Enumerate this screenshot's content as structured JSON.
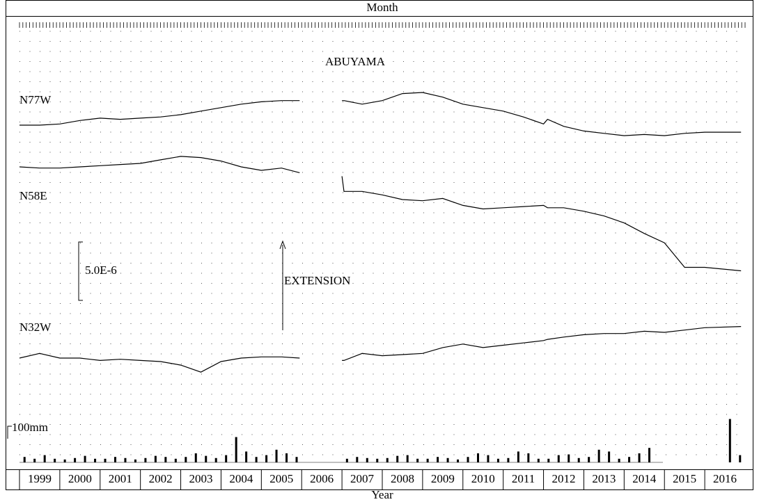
{
  "chart_data": [
    {
      "type": "line",
      "title": "ABUYAMA",
      "top_label": "Month",
      "xlabel": "Year",
      "xlim": [
        1999,
        2017
      ],
      "xticks": [
        1999,
        2000,
        2001,
        2002,
        2003,
        2004,
        2005,
        2006,
        2007,
        2008,
        2009,
        2010,
        2011,
        2012,
        2013,
        2014,
        2015,
        2016
      ],
      "x": [
        1999,
        1999.5,
        2000,
        2000.5,
        2001,
        2001.5,
        2002,
        2002.5,
        2003,
        2003.5,
        2004,
        2004.5,
        2005,
        2005.5,
        2005.95,
        2006.5,
        2007,
        2007.05,
        2007.5,
        2008,
        2008.5,
        2009,
        2009.5,
        2010,
        2010.5,
        2011,
        2011.5,
        2012,
        2012.1,
        2012.5,
        2013,
        2013.5,
        2014,
        2014.5,
        2015,
        2015.5,
        2016,
        2016.9
      ],
      "series": [
        {
          "name": "N77W",
          "color": "#000000",
          "values": [
            0,
            0,
            1e-07,
            4e-07,
            6e-07,
            5e-07,
            6e-07,
            7e-07,
            9e-07,
            1.2e-06,
            1.5e-06,
            1.8e-06,
            2e-06,
            2.1e-06,
            2.1e-06,
            null,
            2.1e-06,
            2.1e-06,
            1.8e-06,
            2.1e-06,
            2.7e-06,
            2.8e-06,
            2.4e-06,
            1.8e-06,
            1.5e-06,
            1.2e-06,
            7e-07,
            1e-07,
            5e-07,
            -1e-07,
            -5e-07,
            -7e-07,
            -9e-07,
            -8e-07,
            -9e-07,
            -7e-07,
            -6e-07,
            -6e-07
          ]
        },
        {
          "name": "N58E",
          "color": "#000000",
          "values": [
            0,
            -1e-07,
            -1e-07,
            0,
            1e-07,
            2e-07,
            3e-07,
            6e-07,
            9e-07,
            8e-07,
            5e-07,
            0,
            -3e-07,
            -1e-07,
            -5e-07,
            null,
            -8e-07,
            -2.1e-06,
            -2.1e-06,
            -2.4e-06,
            -2.8e-06,
            -2.9e-06,
            -2.7e-06,
            -3.3e-06,
            -3.6e-06,
            -3.5e-06,
            -3.4e-06,
            -3.3e-06,
            -3.5e-06,
            -3.5e-06,
            -3.8e-06,
            -4.2e-06,
            -4.8e-06,
            -5.7e-06,
            -6.5e-06,
            -8.6e-06,
            -8.6e-06,
            -8.9e-06
          ]
        },
        {
          "name": "N32W",
          "color": "#000000",
          "values": [
            0,
            4e-07,
            0,
            0,
            -2e-07,
            -1e-07,
            -2e-07,
            -3e-07,
            -6e-07,
            -1.2e-06,
            -3e-07,
            0,
            1e-07,
            1e-07,
            0,
            null,
            -2e-07,
            -2e-07,
            4e-07,
            2e-07,
            3e-07,
            4e-07,
            9e-07,
            1.2e-06,
            9e-07,
            1.1e-06,
            1.3e-06,
            1.5e-06,
            1.6e-06,
            1.8e-06,
            2e-06,
            2.1e-06,
            2.1e-06,
            2.3e-06,
            2.2e-06,
            2.4e-06,
            2.6e-06,
            2.7e-06
          ]
        }
      ],
      "scale_bar": {
        "value": 5e-06,
        "label": "5.0E-6"
      },
      "annotation": "EXTENSION"
    },
    {
      "type": "bar",
      "xlim": [
        1999,
        2017
      ],
      "x": [
        1999.125,
        1999.375,
        1999.625,
        1999.875,
        2000.125,
        2000.375,
        2000.625,
        2000.875,
        2001.125,
        2001.375,
        2001.625,
        2001.875,
        2002.125,
        2002.375,
        2002.625,
        2002.875,
        2003.125,
        2003.375,
        2003.625,
        2003.875,
        2004.125,
        2004.375,
        2004.625,
        2004.875,
        2005.125,
        2005.375,
        2005.625,
        2005.875,
        2006.125,
        2006.375,
        2006.625,
        2006.875,
        2007.125,
        2007.375,
        2007.625,
        2007.875,
        2008.125,
        2008.375,
        2008.625,
        2008.875,
        2009.125,
        2009.375,
        2009.625,
        2009.875,
        2010.125,
        2010.375,
        2010.625,
        2010.875,
        2011.125,
        2011.375,
        2011.625,
        2011.875,
        2012.125,
        2012.375,
        2012.625,
        2012.875,
        2013.125,
        2013.375,
        2013.625,
        2013.875,
        2014.125,
        2014.375,
        2014.625,
        2014.875,
        2015.125,
        2015.375,
        2015.625,
        2015.875,
        2016.125,
        2016.375,
        2016.625,
        2016.875
      ],
      "values": [
        15,
        10,
        20,
        10,
        8,
        12,
        18,
        10,
        10,
        15,
        12,
        8,
        12,
        18,
        15,
        10,
        15,
        25,
        18,
        12,
        20,
        70,
        30,
        15,
        20,
        35,
        25,
        15,
        null,
        null,
        null,
        null,
        10,
        15,
        12,
        10,
        12,
        18,
        20,
        10,
        10,
        15,
        12,
        8,
        15,
        25,
        20,
        10,
        12,
        30,
        25,
        10,
        10,
        20,
        22,
        12,
        15,
        35,
        30,
        10,
        15,
        25,
        40,
        null,
        null,
        null,
        null,
        null,
        null,
        null,
        120,
        20
      ],
      "color": "#000000",
      "scale_bar": {
        "value": 100,
        "label": "100mm"
      }
    }
  ]
}
